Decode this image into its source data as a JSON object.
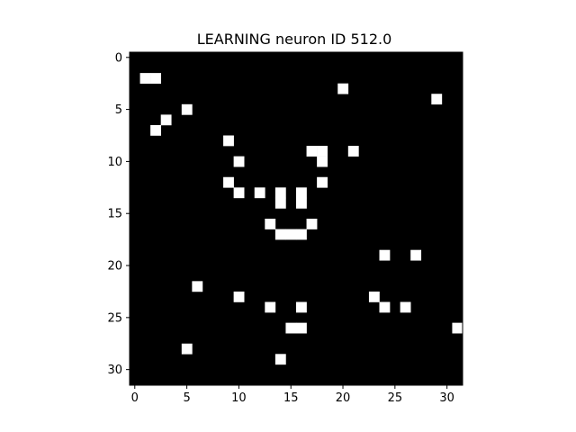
{
  "chart_data": {
    "type": "heatmap",
    "title": "LEARNING neuron ID 512.0",
    "xlabel": "",
    "ylabel": "",
    "rows": 32,
    "cols": 32,
    "colors": {
      "background": "#000000",
      "active": "#ffffff",
      "axis": "#000000"
    },
    "xlim": [
      -0.5,
      31.5
    ],
    "ylim": [
      31.5,
      -0.5
    ],
    "grid": false,
    "xticks": [
      0,
      5,
      10,
      15,
      20,
      25,
      30
    ],
    "yticks": [
      0,
      5,
      10,
      15,
      20,
      25,
      30
    ],
    "active_cells": [
      [
        1,
        2
      ],
      [
        2,
        2
      ],
      [
        20,
        3
      ],
      [
        29,
        4
      ],
      [
        5,
        5
      ],
      [
        3,
        6
      ],
      [
        2,
        7
      ],
      [
        9,
        8
      ],
      [
        17,
        9
      ],
      [
        18,
        9
      ],
      [
        21,
        9
      ],
      [
        10,
        10
      ],
      [
        18,
        10
      ],
      [
        9,
        12
      ],
      [
        18,
        12
      ],
      [
        10,
        13
      ],
      [
        12,
        13
      ],
      [
        14,
        13
      ],
      [
        16,
        13
      ],
      [
        14,
        14
      ],
      [
        16,
        14
      ],
      [
        13,
        16
      ],
      [
        17,
        16
      ],
      [
        14,
        17
      ],
      [
        15,
        17
      ],
      [
        16,
        17
      ],
      [
        24,
        19
      ],
      [
        27,
        19
      ],
      [
        6,
        22
      ],
      [
        10,
        23
      ],
      [
        23,
        23
      ],
      [
        13,
        24
      ],
      [
        16,
        24
      ],
      [
        24,
        24
      ],
      [
        26,
        24
      ],
      [
        15,
        26
      ],
      [
        16,
        26
      ],
      [
        31,
        26
      ],
      [
        5,
        28
      ],
      [
        14,
        29
      ]
    ]
  }
}
